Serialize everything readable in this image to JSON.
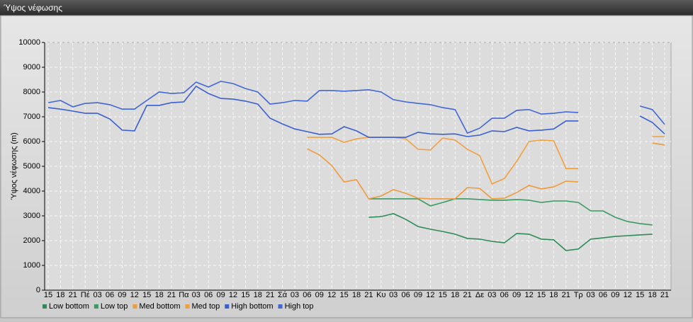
{
  "chart_data": {
    "type": "line",
    "title": "Ύψος νέφωσης",
    "y_label": "Ύψος νέφωσης (m)",
    "categories": [
      "15",
      "18",
      "21",
      "Πέ",
      "03",
      "06",
      "09",
      "12",
      "15",
      "18",
      "21",
      "Πα",
      "03",
      "06",
      "09",
      "12",
      "15",
      "18",
      "21",
      "Σά",
      "03",
      "06",
      "09",
      "12",
      "15",
      "18",
      "21",
      "Κυ",
      "03",
      "06",
      "09",
      "12",
      "15",
      "18",
      "21",
      "Δε",
      "03",
      "06",
      "09",
      "12",
      "15",
      "18",
      "21",
      "Τρ",
      "03",
      "06",
      "09",
      "12",
      "15",
      "18",
      "21"
    ],
    "ylim": [
      0,
      10000
    ],
    "yticks": [
      0,
      1000,
      2000,
      3000,
      4000,
      5000,
      6000,
      7000,
      8000,
      9000,
      10000
    ],
    "grid": true,
    "series": [
      {
        "name": "Low bottom",
        "color": "#2e8b57",
        "values": [
          null,
          null,
          null,
          null,
          null,
          null,
          null,
          null,
          null,
          null,
          null,
          null,
          null,
          null,
          null,
          null,
          null,
          null,
          null,
          null,
          null,
          null,
          null,
          null,
          null,
          null,
          2940,
          2970,
          3090,
          2860,
          2570,
          2460,
          2370,
          2260,
          2090,
          2060,
          1970,
          1910,
          2290,
          2260,
          2060,
          2030,
          1600,
          1660,
          2060,
          2110,
          2170,
          2200,
          2230,
          2260,
          null
        ]
      },
      {
        "name": "Low top",
        "color": "#3a9a62",
        "values": [
          null,
          null,
          null,
          null,
          null,
          null,
          null,
          null,
          null,
          null,
          null,
          null,
          null,
          null,
          null,
          null,
          null,
          null,
          null,
          null,
          null,
          null,
          null,
          null,
          null,
          null,
          3690,
          3690,
          3690,
          3690,
          3690,
          3400,
          3540,
          3690,
          3690,
          3660,
          3630,
          3630,
          3660,
          3630,
          3540,
          3600,
          3600,
          3540,
          3200,
          3200,
          2940,
          2770,
          2690,
          2630,
          null
        ]
      },
      {
        "name": "Med bottom",
        "color": "#ef9a3c",
        "values": [
          null,
          null,
          null,
          null,
          null,
          null,
          null,
          null,
          null,
          null,
          null,
          null,
          null,
          null,
          null,
          null,
          null,
          null,
          null,
          null,
          null,
          5710,
          5460,
          5030,
          4370,
          4460,
          3690,
          3800,
          4060,
          3910,
          3710,
          3690,
          3690,
          3690,
          4140,
          4110,
          3690,
          3710,
          3940,
          4230,
          4090,
          4170,
          4400,
          4370,
          null,
          null,
          null,
          null,
          null,
          5940,
          5860
        ]
      },
      {
        "name": "Med top",
        "color": "#f0a040",
        "values": [
          null,
          null,
          null,
          null,
          null,
          null,
          null,
          null,
          null,
          null,
          null,
          null,
          null,
          null,
          null,
          null,
          null,
          null,
          null,
          null,
          null,
          6170,
          6170,
          6170,
          5970,
          6110,
          6170,
          6170,
          6170,
          6110,
          5690,
          5660,
          6140,
          6060,
          5690,
          5430,
          4290,
          4510,
          5200,
          6000,
          6060,
          6030,
          4910,
          4910,
          null,
          null,
          null,
          null,
          null,
          6200,
          6200
        ]
      },
      {
        "name": "High bottom",
        "color": "#3a5fd0",
        "values": [
          7370,
          7310,
          7230,
          7140,
          7140,
          6910,
          6460,
          6430,
          7460,
          7460,
          7570,
          7600,
          8230,
          7940,
          7740,
          7710,
          7630,
          7510,
          6940,
          6710,
          6510,
          6400,
          6290,
          6310,
          6600,
          6430,
          6170,
          6170,
          6170,
          6170,
          6370,
          6310,
          6290,
          6310,
          6200,
          6260,
          6430,
          6400,
          6570,
          6430,
          6460,
          6510,
          6830,
          6830,
          null,
          null,
          null,
          null,
          7030,
          6770,
          6310
        ]
      },
      {
        "name": "High top",
        "color": "#4066d8",
        "values": [
          7570,
          7660,
          7400,
          7540,
          7570,
          7490,
          7310,
          7310,
          7660,
          8000,
          7940,
          7970,
          8400,
          8200,
          8430,
          8340,
          8140,
          8000,
          7510,
          7570,
          7660,
          7630,
          8060,
          8060,
          8030,
          8060,
          8090,
          8000,
          7690,
          7600,
          7540,
          7490,
          7370,
          7290,
          6340,
          6540,
          6940,
          6940,
          7260,
          7290,
          7110,
          7140,
          7200,
          7170,
          null,
          null,
          null,
          null,
          7430,
          7290,
          6690
        ]
      }
    ]
  }
}
